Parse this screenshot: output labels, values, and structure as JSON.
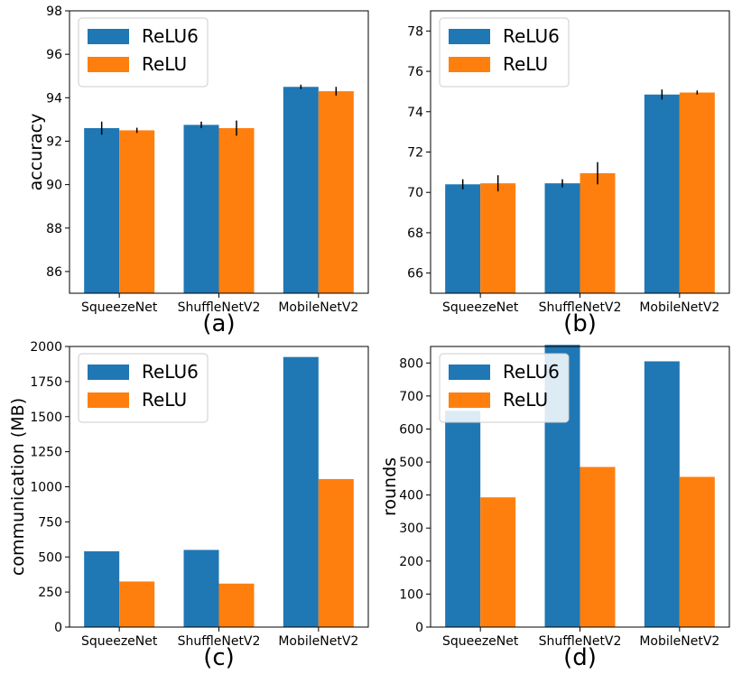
{
  "colors": {
    "relu6": "#1f77b4",
    "relu": "#ff7f0e",
    "frame": "#000000",
    "legend_border": "#cccccc"
  },
  "chart_data": [
    {
      "type": "bar",
      "caption": "(a)",
      "ylabel": "accuracy",
      "xlabel": "",
      "categories": [
        "SqueezeNet",
        "ShuffleNetV2",
        "MobileNetV2"
      ],
      "ylim": [
        85,
        98
      ],
      "yticks": [
        86,
        88,
        90,
        92,
        94,
        96,
        98
      ],
      "legend": "top-left",
      "series": [
        {
          "name": "ReLU6",
          "values": [
            92.6,
            92.75,
            94.5
          ],
          "errors": [
            0.3,
            0.15,
            0.1
          ]
        },
        {
          "name": "ReLU",
          "values": [
            92.5,
            92.6,
            94.3
          ],
          "errors": [
            0.12,
            0.35,
            0.2
          ]
        }
      ]
    },
    {
      "type": "bar",
      "caption": "(b)",
      "ylabel": "",
      "xlabel": "",
      "categories": [
        "SqueezeNet",
        "ShuffleNetV2",
        "MobileNetV2"
      ],
      "ylim": [
        65,
        79
      ],
      "yticks": [
        66,
        68,
        70,
        72,
        74,
        76,
        78
      ],
      "legend": "top-left",
      "series": [
        {
          "name": "ReLU6",
          "values": [
            70.4,
            70.45,
            74.85
          ],
          "errors": [
            0.25,
            0.2,
            0.25
          ]
        },
        {
          "name": "ReLU",
          "values": [
            70.45,
            70.95,
            74.95
          ],
          "errors": [
            0.4,
            0.55,
            0.1
          ]
        }
      ]
    },
    {
      "type": "bar",
      "caption": "(c)",
      "ylabel": "communication (MB)",
      "xlabel": "",
      "categories": [
        "SqueezeNet",
        "ShuffleNetV2",
        "MobileNetV2"
      ],
      "ylim": [
        0,
        2000
      ],
      "yticks": [
        0,
        250,
        500,
        750,
        1000,
        1250,
        1500,
        1750,
        2000
      ],
      "legend": "top-left",
      "series": [
        {
          "name": "ReLU6",
          "values": [
            540,
            550,
            1925
          ]
        },
        {
          "name": "ReLU",
          "values": [
            325,
            310,
            1055
          ]
        }
      ]
    },
    {
      "type": "bar",
      "caption": "(d)",
      "ylabel": "rounds",
      "xlabel": "",
      "categories": [
        "SqueezeNet",
        "ShuffleNetV2",
        "MobileNetV2"
      ],
      "ylim": [
        0,
        850
      ],
      "yticks": [
        0,
        100,
        200,
        300,
        400,
        500,
        600,
        700,
        800
      ],
      "legend": "top-left",
      "series": [
        {
          "name": "ReLU6",
          "values": [
            655,
            855,
            805
          ]
        },
        {
          "name": "ReLU",
          "values": [
            393,
            485,
            455
          ]
        }
      ]
    }
  ]
}
